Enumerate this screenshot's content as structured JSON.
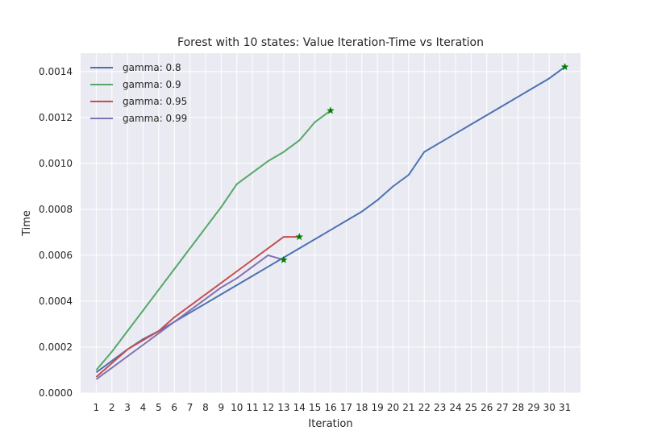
{
  "chart_data": {
    "type": "line",
    "title": "Forest with 10 states: Value Iteration-Time vs Iteration",
    "xlabel": "Iteration",
    "ylabel": "Time",
    "xlim": [
      0,
      32
    ],
    "ylim": [
      0,
      0.00148
    ],
    "x_ticks": [
      1,
      2,
      3,
      4,
      5,
      6,
      7,
      8,
      9,
      10,
      11,
      12,
      13,
      14,
      15,
      16,
      17,
      18,
      19,
      20,
      21,
      22,
      23,
      24,
      25,
      26,
      27,
      28,
      29,
      30,
      31
    ],
    "y_ticks": [
      0.0,
      0.0002,
      0.0004,
      0.0006,
      0.0008,
      0.001,
      0.0012,
      0.0014
    ],
    "y_tick_labels": [
      "0.0000",
      "0.0002",
      "0.0004",
      "0.0006",
      "0.0008",
      "0.0010",
      "0.0012",
      "0.0014"
    ],
    "grid": true,
    "legend_position": "top-left",
    "background": "#eaeaf2",
    "series": [
      {
        "name": "gamma: 0.8",
        "color": "#4c72b0",
        "x": [
          1,
          2,
          3,
          4,
          5,
          6,
          7,
          8,
          9,
          10,
          11,
          12,
          13,
          14,
          15,
          16,
          17,
          18,
          19,
          20,
          21,
          22,
          23,
          24,
          25,
          26,
          27,
          28,
          29,
          30,
          31
        ],
        "values": [
          9e-05,
          0.00014,
          0.00019,
          0.000235,
          0.00027,
          0.00031,
          0.00035,
          0.00039,
          0.00043,
          0.00047,
          0.00051,
          0.00055,
          0.00059,
          0.00063,
          0.00067,
          0.00071,
          0.00075,
          0.00079,
          0.00084,
          0.0009,
          0.00095,
          0.00105,
          0.00109,
          0.00113,
          0.00117,
          0.00121,
          0.00125,
          0.00129,
          0.00133,
          0.00137,
          0.00142
        ],
        "end_marker": true
      },
      {
        "name": "gamma: 0.9",
        "color": "#55a868",
        "x": [
          1,
          2,
          3,
          4,
          5,
          6,
          7,
          8,
          9,
          10,
          11,
          12,
          13,
          14,
          15,
          16
        ],
        "values": [
          0.0001,
          0.00018,
          0.00027,
          0.00036,
          0.00045,
          0.00054,
          0.00063,
          0.00072,
          0.00081,
          0.00091,
          0.00096,
          0.00101,
          0.00105,
          0.0011,
          0.00118,
          0.00123
        ],
        "end_marker": true
      },
      {
        "name": "gamma: 0.95",
        "color": "#c44e52",
        "x": [
          1,
          2,
          3,
          4,
          5,
          6,
          7,
          8,
          9,
          10,
          11,
          12,
          13,
          14
        ],
        "values": [
          7e-05,
          0.00013,
          0.00019,
          0.00023,
          0.00027,
          0.00033,
          0.00038,
          0.00043,
          0.00048,
          0.00053,
          0.00058,
          0.00063,
          0.00068,
          0.00068
        ],
        "end_marker": true
      },
      {
        "name": "gamma: 0.99",
        "color": "#8172b2",
        "x": [
          1,
          2,
          3,
          4,
          5,
          6,
          7,
          8,
          9,
          10,
          11,
          12,
          13
        ],
        "values": [
          6e-05,
          0.00011,
          0.00016,
          0.00021,
          0.00026,
          0.00031,
          0.00036,
          0.00041,
          0.00046,
          0.0005,
          0.00055,
          0.0006,
          0.00058
        ],
        "end_marker": true
      }
    ],
    "marker_color": "#008000"
  }
}
